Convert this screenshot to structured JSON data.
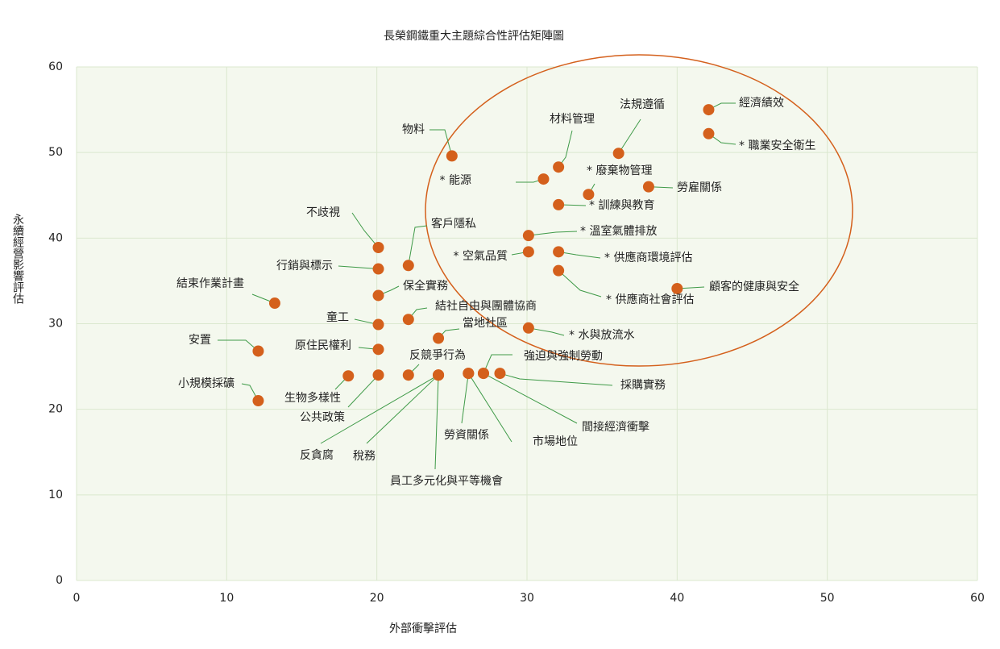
{
  "chart_data": {
    "type": "scatter",
    "title": "長榮鋼鐵重大主題綜合性評估矩陣圖",
    "x_label": "外部衝擊評估",
    "y_label": "永續經營影響評估",
    "point_labels": [
      "經濟績效",
      "* 職業安全衛生",
      "法規遵循",
      "材料管理",
      "物料",
      "* 能源",
      "* 廢棄物管理",
      "勞雇關係",
      "* 訓練與教育",
      "* 溫室氣體排放",
      "* 空氣品質",
      "* 供應商環境評估",
      "* 供應商社會評估",
      "顧客的健康與安全",
      "* 水與放流水",
      "不歧視",
      "客戶隱私",
      "行銷與標示",
      "保全實務",
      "結束作業計畫",
      "童工",
      "結社自由與團體協商",
      "當地社區",
      "安置",
      "原住民權利",
      "生物多樣性",
      "公共政策",
      "反競爭行為",
      "反貪腐",
      "稅務",
      "員工多元化與平等機會",
      "勞資關係",
      "市場地位",
      "間接經濟衝擊",
      "強迫與強制勞動",
      "採購實務",
      "小規模採礦"
    ],
    "x": [
      42.1,
      42.1,
      36.1,
      32.1,
      25.0,
      31.1,
      34.1,
      38.1,
      32.1,
      30.1,
      30.1,
      32.1,
      32.1,
      40.0,
      30.1,
      20.1,
      22.1,
      20.1,
      20.1,
      13.2,
      20.1,
      22.1,
      24.1,
      12.1,
      20.1,
      18.1,
      20.1,
      22.1,
      24.1,
      24.1,
      24.1,
      26.1,
      26.1,
      27.1,
      27.1,
      28.2,
      12.1
    ],
    "y": [
      55.0,
      52.2,
      49.9,
      48.3,
      49.6,
      46.9,
      45.1,
      46.0,
      43.9,
      40.3,
      38.4,
      38.4,
      36.2,
      34.1,
      29.5,
      38.9,
      36.8,
      36.4,
      33.3,
      32.4,
      29.9,
      30.5,
      28.3,
      26.8,
      27.0,
      23.9,
      24.0,
      24.0,
      24.0,
      24.0,
      24.0,
      24.2,
      24.2,
      24.2,
      24.2,
      24.2,
      21.0
    ],
    "color": "#d4601c",
    "xlim": [
      0,
      60
    ],
    "ylim": [
      0,
      60
    ],
    "xticks": [
      0,
      10,
      20,
      30,
      40,
      50,
      60
    ],
    "yticks": [
      0,
      10,
      20,
      30,
      40,
      50,
      60
    ],
    "grid": true
  }
}
